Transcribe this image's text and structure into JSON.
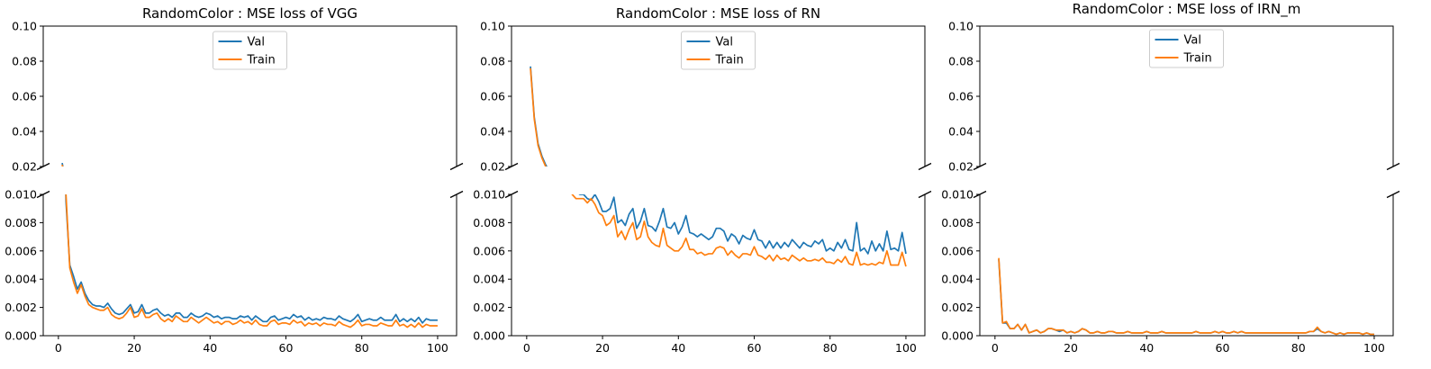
{
  "colors": {
    "val": "#1f77b4",
    "train": "#ff7f0e"
  },
  "chart_data": [
    {
      "type": "line",
      "title": "RandomColor : MSE loss of VGG",
      "legend": [
        "Val",
        "Train"
      ],
      "legend_position": "top-center",
      "grid": false,
      "broken_y_axis": true,
      "xlim": [
        -4,
        105
      ],
      "x_ticks": [
        "0",
        "20",
        "40",
        "60",
        "80",
        "100"
      ],
      "upper_ylim": [
        0.02,
        0.1
      ],
      "upper_y_ticks": [
        "0.02",
        "0.04",
        "0.06",
        "0.08",
        "0.10"
      ],
      "lower_ylim": [
        0,
        0.01
      ],
      "lower_y_ticks": [
        "0.000",
        "0.002",
        "0.004",
        "0.006",
        "0.008",
        "0.010"
      ],
      "x": [
        1,
        2,
        3,
        4,
        5,
        6,
        7,
        8,
        9,
        10,
        11,
        12,
        13,
        14,
        15,
        16,
        17,
        18,
        19,
        20,
        21,
        22,
        23,
        24,
        25,
        26,
        27,
        28,
        29,
        30,
        31,
        32,
        33,
        34,
        35,
        36,
        37,
        38,
        39,
        40,
        41,
        42,
        43,
        44,
        45,
        46,
        47,
        48,
        49,
        50,
        51,
        52,
        53,
        54,
        55,
        56,
        57,
        58,
        59,
        60,
        61,
        62,
        63,
        64,
        65,
        66,
        67,
        68,
        69,
        70,
        71,
        72,
        73,
        74,
        75,
        76,
        77,
        78,
        79,
        80,
        81,
        82,
        83,
        84,
        85,
        86,
        87,
        88,
        89,
        90,
        91,
        92,
        93,
        94,
        95,
        96,
        97,
        98,
        99,
        100
      ],
      "series": [
        {
          "name": "Val",
          "values": [
            0.022,
            0.0095,
            0.005,
            0.0042,
            0.0033,
            0.0038,
            0.003,
            0.0025,
            0.0022,
            0.0021,
            0.0021,
            0.002,
            0.0023,
            0.0019,
            0.0016,
            0.0015,
            0.0016,
            0.0019,
            0.0022,
            0.0016,
            0.0017,
            0.0022,
            0.0016,
            0.0016,
            0.0018,
            0.0019,
            0.0016,
            0.0014,
            0.0015,
            0.0013,
            0.0016,
            0.0016,
            0.0013,
            0.0013,
            0.0016,
            0.0014,
            0.0013,
            0.0014,
            0.0016,
            0.0015,
            0.0013,
            0.0014,
            0.0012,
            0.0013,
            0.0013,
            0.0012,
            0.0012,
            0.0014,
            0.0013,
            0.0014,
            0.0011,
            0.0014,
            0.0012,
            0.001,
            0.001,
            0.0013,
            0.0014,
            0.0011,
            0.0012,
            0.0013,
            0.0012,
            0.0015,
            0.0013,
            0.0014,
            0.0011,
            0.0013,
            0.0011,
            0.0012,
            0.0011,
            0.0013,
            0.0012,
            0.0012,
            0.0011,
            0.0014,
            0.0012,
            0.0011,
            0.001,
            0.0012,
            0.0015,
            0.001,
            0.0011,
            0.0012,
            0.0011,
            0.0011,
            0.0013,
            0.0011,
            0.0011,
            0.0011,
            0.0015,
            0.001,
            0.0012,
            0.001,
            0.0012,
            0.001,
            0.0013,
            0.0009,
            0.0012,
            0.0011,
            0.0011,
            0.0011
          ]
        },
        {
          "name": "Train",
          "values": [
            0.021,
            0.01,
            0.0048,
            0.0038,
            0.003,
            0.0036,
            0.0028,
            0.0022,
            0.002,
            0.0019,
            0.0018,
            0.0018,
            0.002,
            0.0015,
            0.0013,
            0.0012,
            0.0013,
            0.0016,
            0.002,
            0.0013,
            0.0014,
            0.0019,
            0.0013,
            0.0013,
            0.0015,
            0.0016,
            0.0012,
            0.001,
            0.0012,
            0.001,
            0.0014,
            0.0012,
            0.001,
            0.001,
            0.0013,
            0.0011,
            0.0009,
            0.0011,
            0.0013,
            0.0011,
            0.0009,
            0.001,
            0.0008,
            0.001,
            0.001,
            0.0008,
            0.0009,
            0.0011,
            0.0009,
            0.001,
            0.0008,
            0.0011,
            0.0008,
            0.0007,
            0.0007,
            0.001,
            0.0011,
            0.0008,
            0.0009,
            0.0009,
            0.0008,
            0.0011,
            0.0009,
            0.001,
            0.0007,
            0.0009,
            0.0008,
            0.0009,
            0.0007,
            0.0009,
            0.0008,
            0.0008,
            0.0007,
            0.001,
            0.0008,
            0.0007,
            0.0006,
            0.0008,
            0.0011,
            0.0007,
            0.0008,
            0.0008,
            0.0007,
            0.0007,
            0.0009,
            0.0008,
            0.0007,
            0.0007,
            0.0011,
            0.0007,
            0.0008,
            0.0006,
            0.0008,
            0.0006,
            0.0009,
            0.0006,
            0.0008,
            0.0007,
            0.0007,
            0.0007
          ]
        }
      ]
    },
    {
      "type": "line",
      "title": "RandomColor : MSE loss of RN",
      "legend": [
        "Val",
        "Train"
      ],
      "legend_position": "top-center",
      "grid": false,
      "broken_y_axis": true,
      "xlim": [
        -4,
        105
      ],
      "x_ticks": [
        "0",
        "20",
        "40",
        "60",
        "80",
        "100"
      ],
      "upper_ylim": [
        0.02,
        0.1
      ],
      "upper_y_ticks": [
        "0.02",
        "0.04",
        "0.06",
        "0.08",
        "0.10"
      ],
      "lower_ylim": [
        0,
        0.01
      ],
      "lower_y_ticks": [
        "0.000",
        "0.002",
        "0.004",
        "0.006",
        "0.008",
        "0.010"
      ],
      "x": [
        1,
        2,
        3,
        4,
        5,
        6,
        7,
        8,
        9,
        10,
        11,
        12,
        13,
        14,
        15,
        16,
        17,
        18,
        19,
        20,
        21,
        22,
        23,
        24,
        25,
        26,
        27,
        28,
        29,
        30,
        31,
        32,
        33,
        34,
        35,
        36,
        37,
        38,
        39,
        40,
        41,
        42,
        43,
        44,
        45,
        46,
        47,
        48,
        49,
        50,
        51,
        52,
        53,
        54,
        55,
        56,
        57,
        58,
        59,
        60,
        61,
        62,
        63,
        64,
        65,
        66,
        67,
        68,
        69,
        70,
        71,
        72,
        73,
        74,
        75,
        76,
        77,
        78,
        79,
        80,
        81,
        82,
        83,
        84,
        85,
        86,
        87,
        88,
        89,
        90,
        91,
        92,
        93,
        94,
        95,
        96,
        97,
        98,
        99,
        100
      ],
      "series": [
        {
          "name": "Val",
          "values": [
            0.077,
            0.048,
            0.033,
            0.026,
            0.021,
            0.017,
            0.015,
            0.013,
            0.012,
            0.0115,
            0.011,
            0.0105,
            0.0102,
            0.01,
            0.01,
            0.0097,
            0.0096,
            0.01,
            0.0095,
            0.0088,
            0.0088,
            0.009,
            0.0098,
            0.008,
            0.0082,
            0.0078,
            0.0086,
            0.009,
            0.0076,
            0.0081,
            0.009,
            0.0078,
            0.0077,
            0.0074,
            0.0081,
            0.009,
            0.0077,
            0.0076,
            0.008,
            0.0072,
            0.0077,
            0.0085,
            0.0073,
            0.0072,
            0.007,
            0.0072,
            0.007,
            0.0068,
            0.007,
            0.0076,
            0.0076,
            0.0074,
            0.0067,
            0.0072,
            0.007,
            0.0065,
            0.0071,
            0.0069,
            0.0068,
            0.0075,
            0.0068,
            0.0067,
            0.0062,
            0.0067,
            0.0062,
            0.0066,
            0.0062,
            0.0066,
            0.0063,
            0.0068,
            0.0065,
            0.0062,
            0.0066,
            0.0064,
            0.0063,
            0.0067,
            0.0065,
            0.0068,
            0.006,
            0.0062,
            0.006,
            0.0066,
            0.0062,
            0.0068,
            0.0061,
            0.006,
            0.008,
            0.006,
            0.0062,
            0.0058,
            0.0067,
            0.006,
            0.0065,
            0.006,
            0.0074,
            0.0061,
            0.0062,
            0.006,
            0.0073,
            0.0058
          ]
        },
        {
          "name": "Train",
          "values": [
            0.076,
            0.047,
            0.032,
            0.025,
            0.02,
            0.016,
            0.014,
            0.013,
            0.012,
            0.011,
            0.0105,
            0.01,
            0.0097,
            0.0097,
            0.0097,
            0.0094,
            0.0097,
            0.0093,
            0.0087,
            0.0085,
            0.0078,
            0.008,
            0.0085,
            0.007,
            0.0074,
            0.0068,
            0.0075,
            0.008,
            0.0068,
            0.007,
            0.0081,
            0.007,
            0.0066,
            0.0064,
            0.0063,
            0.0076,
            0.0064,
            0.0062,
            0.006,
            0.006,
            0.0063,
            0.0069,
            0.0061,
            0.0061,
            0.0058,
            0.0059,
            0.0057,
            0.0058,
            0.0058,
            0.0062,
            0.0063,
            0.0062,
            0.0057,
            0.006,
            0.0057,
            0.0055,
            0.0058,
            0.0058,
            0.0057,
            0.0063,
            0.0057,
            0.0056,
            0.0054,
            0.0057,
            0.0053,
            0.0057,
            0.0054,
            0.0055,
            0.0053,
            0.0057,
            0.0055,
            0.0053,
            0.0055,
            0.0053,
            0.0053,
            0.0054,
            0.0053,
            0.0055,
            0.0052,
            0.0052,
            0.0051,
            0.0054,
            0.0052,
            0.0056,
            0.0051,
            0.005,
            0.0059,
            0.005,
            0.0051,
            0.005,
            0.0051,
            0.005,
            0.0052,
            0.0051,
            0.006,
            0.005,
            0.005,
            0.005,
            0.0059,
            0.0049
          ]
        }
      ]
    },
    {
      "type": "line",
      "title": "RandomColor : MSE loss of IRN_m",
      "legend": [
        "Val",
        "Train"
      ],
      "legend_position": "top-center",
      "grid": false,
      "broken_y_axis": true,
      "xlim": [
        -4,
        105
      ],
      "x_ticks": [
        "0",
        "20",
        "40",
        "60",
        "80",
        "100"
      ],
      "upper_ylim": [
        0.02,
        0.1
      ],
      "upper_y_ticks": [
        "0.02",
        "0.04",
        "0.06",
        "0.08",
        "0.10"
      ],
      "lower_ylim": [
        0,
        0.01
      ],
      "lower_y_ticks": [
        "0.000",
        "0.002",
        "0.004",
        "0.006",
        "0.008",
        "0.010"
      ],
      "x": [
        1,
        2,
        3,
        4,
        5,
        6,
        7,
        8,
        9,
        10,
        11,
        12,
        13,
        14,
        15,
        16,
        17,
        18,
        19,
        20,
        21,
        22,
        23,
        24,
        25,
        26,
        27,
        28,
        29,
        30,
        31,
        32,
        33,
        34,
        35,
        36,
        37,
        38,
        39,
        40,
        41,
        42,
        43,
        44,
        45,
        46,
        47,
        48,
        49,
        50,
        51,
        52,
        53,
        54,
        55,
        56,
        57,
        58,
        59,
        60,
        61,
        62,
        63,
        64,
        65,
        66,
        67,
        68,
        69,
        70,
        71,
        72,
        73,
        74,
        75,
        76,
        77,
        78,
        79,
        80,
        81,
        82,
        83,
        84,
        85,
        86,
        87,
        88,
        89,
        90,
        91,
        92,
        93,
        94,
        95,
        96,
        97,
        98,
        99,
        100
      ],
      "series": [
        {
          "name": "Val",
          "values": [
            0.0054,
            0.0009,
            0.0009,
            0.0005,
            0.0005,
            0.0008,
            0.0004,
            0.0008,
            0.0002,
            0.0003,
            0.0004,
            0.0002,
            0.0003,
            0.0005,
            0.0005,
            0.0004,
            0.0003,
            0.0004,
            0.0002,
            0.0003,
            0.0002,
            0.0003,
            0.0005,
            0.0004,
            0.0002,
            0.0002,
            0.0003,
            0.0002,
            0.0002,
            0.0003,
            0.0003,
            0.0002,
            0.0002,
            0.0002,
            0.0003,
            0.0002,
            0.0002,
            0.0002,
            0.0002,
            0.0003,
            0.0002,
            0.0002,
            0.0002,
            0.0003,
            0.0002,
            0.0002,
            0.0002,
            0.0002,
            0.0002,
            0.0002,
            0.0002,
            0.0002,
            0.0003,
            0.0002,
            0.0002,
            0.0002,
            0.0002,
            0.0003,
            0.0002,
            0.0003,
            0.0002,
            0.0002,
            0.0003,
            0.0002,
            0.0003,
            0.0002,
            0.0002,
            0.0002,
            0.0002,
            0.0002,
            0.0002,
            0.0002,
            0.0002,
            0.0002,
            0.0002,
            0.0002,
            0.0002,
            0.0002,
            0.0002,
            0.0002,
            0.0002,
            0.0002,
            0.0003,
            0.0003,
            0.0005,
            0.0003,
            0.0002,
            0.0003,
            0.0002,
            0.0001,
            0.0002,
            0.0001,
            0.0002,
            0.0002,
            0.0002,
            0.0002,
            0.0001,
            0.0002,
            0.0001,
            0.0001
          ]
        },
        {
          "name": "Train",
          "values": [
            0.0055,
            0.0009,
            0.001,
            0.0005,
            0.0005,
            0.0008,
            0.0004,
            0.0008,
            0.0002,
            0.0003,
            0.0004,
            0.0002,
            0.0003,
            0.0005,
            0.0005,
            0.0004,
            0.0004,
            0.0004,
            0.0002,
            0.0003,
            0.0002,
            0.0003,
            0.0005,
            0.0004,
            0.0002,
            0.0002,
            0.0003,
            0.0002,
            0.0002,
            0.0003,
            0.0003,
            0.0002,
            0.0002,
            0.0002,
            0.0003,
            0.0002,
            0.0002,
            0.0002,
            0.0002,
            0.0003,
            0.0002,
            0.0002,
            0.0002,
            0.0003,
            0.0002,
            0.0002,
            0.0002,
            0.0002,
            0.0002,
            0.0002,
            0.0002,
            0.0002,
            0.0003,
            0.0002,
            0.0002,
            0.0002,
            0.0002,
            0.0003,
            0.0002,
            0.0003,
            0.0002,
            0.0002,
            0.0003,
            0.0002,
            0.0003,
            0.0002,
            0.0002,
            0.0002,
            0.0002,
            0.0002,
            0.0002,
            0.0002,
            0.0002,
            0.0002,
            0.0002,
            0.0002,
            0.0002,
            0.0002,
            0.0002,
            0.0002,
            0.0002,
            0.0002,
            0.0003,
            0.0003,
            0.0006,
            0.0003,
            0.0002,
            0.0003,
            0.0002,
            0.0001,
            0.0002,
            0.0001,
            0.0002,
            0.0002,
            0.0002,
            0.0002,
            0.0001,
            0.0002,
            0.0001,
            0.0001
          ]
        }
      ]
    }
  ]
}
